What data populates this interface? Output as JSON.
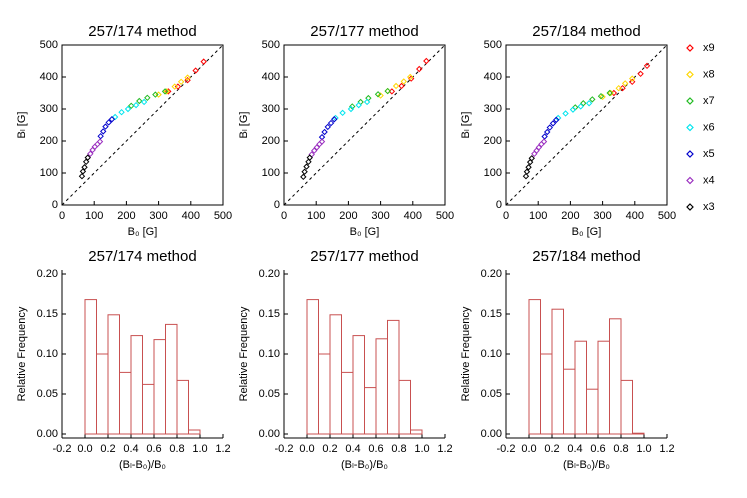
{
  "chart_data": [
    {
      "type": "scatter",
      "title": "257/174 method",
      "x_label": "B₀ [G]",
      "y_label": "Bₗ [G]",
      "xlim": [
        0,
        500
      ],
      "ylim": [
        0,
        500
      ],
      "xticks": [
        0,
        100,
        200,
        300,
        400,
        500
      ],
      "yticks": [
        0,
        100,
        200,
        300,
        400,
        500
      ],
      "series": [
        {
          "color": "#ff0000",
          "x": [
            330,
            360,
            390,
            415,
            440
          ],
          "y": [
            355,
            370,
            390,
            420,
            448
          ]
        },
        {
          "color": "#ffd700",
          "x": [
            300,
            325,
            350,
            370,
            390
          ],
          "y": [
            345,
            355,
            370,
            385,
            398
          ]
        },
        {
          "color": "#22bb22",
          "x": [
            215,
            240,
            265,
            290,
            320
          ],
          "y": [
            310,
            325,
            335,
            345,
            355
          ]
        },
        {
          "color": "#00e5ee",
          "x": [
            165,
            185,
            205,
            230,
            255
          ],
          "y": [
            275,
            290,
            300,
            312,
            322
          ]
        },
        {
          "color": "#0000cc",
          "x": [
            120,
            128,
            135,
            145,
            155
          ],
          "y": [
            215,
            230,
            245,
            258,
            268
          ]
        },
        {
          "color": "#9b30c0",
          "x": [
            88,
            95,
            102,
            110,
            118
          ],
          "y": [
            160,
            172,
            182,
            190,
            198
          ]
        },
        {
          "color": "#000000",
          "x": [
            62,
            65,
            70,
            75,
            80
          ],
          "y": [
            90,
            105,
            118,
            135,
            148
          ]
        }
      ]
    },
    {
      "type": "scatter",
      "title": "257/177 method",
      "x_label": "B₀ [G]",
      "y_label": "Bₗ [G]",
      "xlim": [
        0,
        500
      ],
      "ylim": [
        0,
        500
      ],
      "xticks": [
        0,
        100,
        200,
        300,
        400,
        500
      ],
      "yticks": [
        0,
        100,
        200,
        300,
        400,
        500
      ],
      "series": [
        {
          "color": "#ff0000",
          "x": [
            335,
            365,
            395,
            420,
            442
          ],
          "y": [
            355,
            372,
            395,
            425,
            450
          ]
        },
        {
          "color": "#ffd700",
          "x": [
            300,
            322,
            348,
            372,
            392
          ],
          "y": [
            342,
            356,
            372,
            386,
            400
          ]
        },
        {
          "color": "#22bb22",
          "x": [
            212,
            238,
            262,
            292,
            322
          ],
          "y": [
            308,
            322,
            334,
            346,
            356
          ]
        },
        {
          "color": "#00e5ee",
          "x": [
            160,
            182,
            208,
            232,
            258
          ],
          "y": [
            272,
            288,
            300,
            312,
            322
          ]
        },
        {
          "color": "#0000cc",
          "x": [
            118,
            126,
            136,
            146,
            156
          ],
          "y": [
            212,
            228,
            244,
            256,
            268
          ]
        },
        {
          "color": "#9b30c0",
          "x": [
            86,
            94,
            102,
            110,
            118
          ],
          "y": [
            158,
            170,
            180,
            190,
            198
          ]
        },
        {
          "color": "#000000",
          "x": [
            60,
            64,
            70,
            76,
            80
          ],
          "y": [
            88,
            104,
            120,
            135,
            148
          ]
        }
      ]
    },
    {
      "type": "scatter",
      "title": "257/184 method",
      "x_label": "B₀ [G]",
      "y_label": "Bₗ [G]",
      "xlim": [
        0,
        500
      ],
      "ylim": [
        0,
        500
      ],
      "xticks": [
        0,
        100,
        200,
        300,
        400,
        500
      ],
      "yticks": [
        0,
        100,
        200,
        300,
        400,
        500
      ],
      "legend": "right",
      "series": [
        {
          "name": "x9",
          "color": "#ff0000",
          "x": [
            335,
            362,
            392,
            418,
            438
          ],
          "y": [
            350,
            365,
            385,
            410,
            435
          ]
        },
        {
          "name": "x8",
          "color": "#ffd700",
          "x": [
            300,
            325,
            350,
            370,
            392
          ],
          "y": [
            338,
            350,
            365,
            380,
            395
          ]
        },
        {
          "name": "x7",
          "color": "#22bb22",
          "x": [
            215,
            240,
            268,
            295,
            322
          ],
          "y": [
            305,
            318,
            330,
            340,
            350
          ]
        },
        {
          "name": "x6",
          "color": "#00e5ee",
          "x": [
            162,
            185,
            208,
            232,
            258
          ],
          "y": [
            272,
            286,
            298,
            308,
            318
          ]
        },
        {
          "name": "x5",
          "color": "#0000cc",
          "x": [
            120,
            128,
            136,
            146,
            156
          ],
          "y": [
            214,
            228,
            242,
            255,
            266
          ]
        },
        {
          "name": "x4",
          "color": "#9b30c0",
          "x": [
            88,
            95,
            102,
            110,
            118
          ],
          "y": [
            160,
            170,
            180,
            190,
            198
          ]
        },
        {
          "name": "x3",
          "color": "#000000",
          "x": [
            62,
            65,
            70,
            75,
            80
          ],
          "y": [
            90,
            104,
            118,
            134,
            146
          ]
        }
      ]
    },
    {
      "type": "histogram",
      "title": "257/174 method",
      "x_label": "(Bₗ-B₀)/B₀",
      "y_label": "Relative Frequency",
      "color": "#c85050",
      "bins": [
        0,
        0.1,
        0.2,
        0.3,
        0.4,
        0.5,
        0.6,
        0.7,
        0.8,
        0.9,
        1.0
      ],
      "values": [
        0.168,
        0.1,
        0.149,
        0.077,
        0.123,
        0.062,
        0.118,
        0.137,
        0.067,
        0.005
      ],
      "xlim": [
        -0.2,
        1.2
      ],
      "ylim": [
        -0.005,
        0.205
      ],
      "xticks": [
        -0.2,
        {
          "value": 0,
          "label": "0.0"
        },
        0.2,
        0.4,
        0.6,
        0.8,
        {
          "value": 1,
          "label": "1.0"
        },
        1.2
      ],
      "yticks": [
        {
          "value": 0,
          "label": "0.00"
        },
        {
          "value": 0.05,
          "label": "0.05"
        },
        {
          "value": 0.1,
          "label": "0.10"
        },
        {
          "value": 0.15,
          "label": "0.15"
        },
        {
          "value": 0.2,
          "label": "0.20"
        }
      ]
    },
    {
      "type": "histogram",
      "title": "257/177 method",
      "x_label": "(Bₗ-B₀)/B₀",
      "y_label": "Relative Frequency",
      "color": "#c85050",
      "bins": [
        0,
        0.1,
        0.2,
        0.3,
        0.4,
        0.5,
        0.6,
        0.7,
        0.8,
        0.9,
        1.0
      ],
      "values": [
        0.168,
        0.1,
        0.149,
        0.077,
        0.123,
        0.058,
        0.119,
        0.142,
        0.067,
        0.005
      ],
      "xlim": [
        -0.2,
        1.2
      ],
      "ylim": [
        -0.005,
        0.205
      ],
      "xticks": [
        -0.2,
        {
          "value": 0,
          "label": "0.0"
        },
        0.2,
        0.4,
        0.6,
        0.8,
        {
          "value": 1,
          "label": "1.0"
        },
        1.2
      ],
      "yticks": [
        {
          "value": 0,
          "label": "0.00"
        },
        {
          "value": 0.05,
          "label": "0.05"
        },
        {
          "value": 0.1,
          "label": "0.10"
        },
        {
          "value": 0.15,
          "label": "0.15"
        },
        {
          "value": 0.2,
          "label": "0.20"
        }
      ]
    },
    {
      "type": "histogram",
      "title": "257/184 method",
      "x_label": "(Bₗ-B₀)/B₀",
      "y_label": "Relative Frequency",
      "color": "#c85050",
      "bins": [
        0,
        0.1,
        0.2,
        0.3,
        0.4,
        0.5,
        0.6,
        0.7,
        0.8,
        0.9,
        1.0
      ],
      "values": [
        0.168,
        0.1,
        0.156,
        0.081,
        0.116,
        0.056,
        0.116,
        0.144,
        0.067,
        0.001
      ],
      "xlim": [
        -0.2,
        1.2
      ],
      "ylim": [
        -0.005,
        0.205
      ],
      "xticks": [
        -0.2,
        {
          "value": 0,
          "label": "0.0"
        },
        0.2,
        0.4,
        0.6,
        0.8,
        {
          "value": 1,
          "label": "1.0"
        },
        1.2
      ],
      "yticks": [
        {
          "value": 0,
          "label": "0.00"
        },
        {
          "value": 0.05,
          "label": "0.05"
        },
        {
          "value": 0.1,
          "label": "0.10"
        },
        {
          "value": 0.15,
          "label": "0.15"
        },
        {
          "value": 0.2,
          "label": "0.20"
        }
      ]
    }
  ]
}
